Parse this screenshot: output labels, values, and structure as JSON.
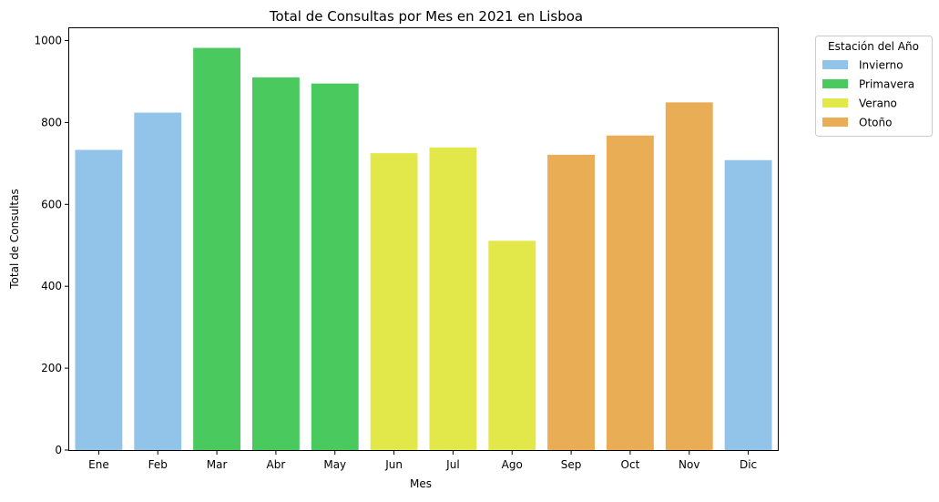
{
  "chart_data": {
    "type": "bar",
    "title": "Total de Consultas por Mes en 2021 en Lisboa",
    "xlabel": "Mes",
    "ylabel": "Total de Consultas",
    "ylim": [
      0,
      1030
    ],
    "yticks": [
      0,
      200,
      400,
      600,
      800,
      1000
    ],
    "grid": false,
    "categories": [
      "Ene",
      "Feb",
      "Mar",
      "Abr",
      "May",
      "Jun",
      "Jul",
      "Ago",
      "Sep",
      "Oct",
      "Nov",
      "Dic"
    ],
    "values": [
      733,
      824,
      982,
      910,
      895,
      725,
      739,
      511,
      721,
      768,
      849,
      708
    ],
    "bar_season": [
      "Invierno",
      "Invierno",
      "Primavera",
      "Primavera",
      "Primavera",
      "Verano",
      "Verano",
      "Verano",
      "Otoño",
      "Otoño",
      "Otoño",
      "Invierno"
    ],
    "legend": {
      "title": "Estación del Año",
      "placement": "outside-upper-right",
      "entries": [
        {
          "label": "Invierno",
          "color": "#92C4EA"
        },
        {
          "label": "Primavera",
          "color": "#4AC95E"
        },
        {
          "label": "Verano",
          "color": "#E3E84A"
        },
        {
          "label": "Otoño",
          "color": "#E9AE55"
        }
      ]
    }
  }
}
